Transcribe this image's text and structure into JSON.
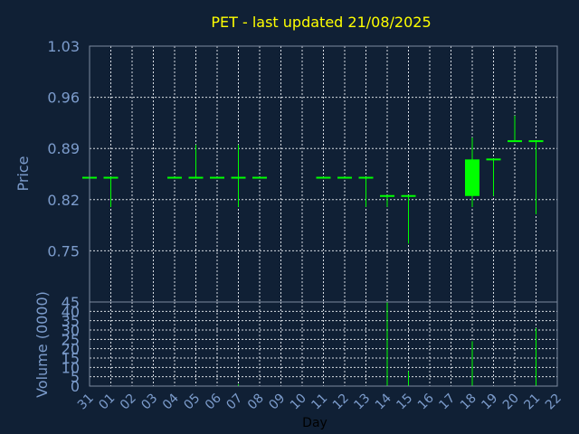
{
  "colors": {
    "background": "#102035",
    "title": "#ffff00",
    "candle": "#00ff00",
    "axis_text": "#7c9ccc",
    "xlabel": "#000000",
    "grid": "#d8dde4"
  },
  "chart_data": {
    "type": "candlestick",
    "title": "PET - last updated 21/08/2025",
    "xlabel": "Day",
    "price_panel": {
      "ylabel": "Price",
      "ylim": [
        0.68,
        1.03
      ],
      "yticks": [
        "1.03",
        "0.96",
        "0.89",
        "0.82",
        "0.75"
      ],
      "ytick_values": [
        1.03,
        0.96,
        0.89,
        0.82,
        0.75
      ],
      "grid": true
    },
    "volume_panel": {
      "ylabel": "Volume (0000)",
      "ylim": [
        0,
        45
      ],
      "yticks": [
        "45",
        "40",
        "35",
        "30",
        "25",
        "20",
        "15",
        "10",
        "5",
        "0"
      ],
      "ytick_values": [
        45,
        40,
        35,
        30,
        25,
        20,
        15,
        10,
        5,
        0
      ],
      "grid": true
    },
    "days": [
      "31",
      "01",
      "02",
      "03",
      "04",
      "05",
      "06",
      "07",
      "08",
      "09",
      "10",
      "11",
      "12",
      "13",
      "14",
      "15",
      "16",
      "17",
      "18",
      "19",
      "20",
      "21",
      "22"
    ],
    "candles": [
      {
        "day": "31",
        "open": 0.85,
        "high": 0.85,
        "low": 0.85,
        "close": 0.85
      },
      {
        "day": "01",
        "open": 0.85,
        "high": 0.85,
        "low": 0.81,
        "close": 0.85
      },
      {
        "day": "04",
        "open": 0.85,
        "high": 0.85,
        "low": 0.85,
        "close": 0.85
      },
      {
        "day": "05",
        "open": 0.85,
        "high": 0.895,
        "low": 0.85,
        "close": 0.85
      },
      {
        "day": "06",
        "open": 0.85,
        "high": 0.85,
        "low": 0.85,
        "close": 0.85
      },
      {
        "day": "07",
        "open": 0.85,
        "high": 0.895,
        "low": 0.81,
        "close": 0.85
      },
      {
        "day": "08",
        "open": 0.85,
        "high": 0.85,
        "low": 0.85,
        "close": 0.85
      },
      {
        "day": "11",
        "open": 0.85,
        "high": 0.85,
        "low": 0.85,
        "close": 0.85
      },
      {
        "day": "12",
        "open": 0.85,
        "high": 0.85,
        "low": 0.85,
        "close": 0.85
      },
      {
        "day": "13",
        "open": 0.85,
        "high": 0.85,
        "low": 0.81,
        "close": 0.85
      },
      {
        "day": "14",
        "open": 0.825,
        "high": 0.825,
        "low": 0.81,
        "close": 0.825
      },
      {
        "day": "15",
        "open": 0.825,
        "high": 0.825,
        "low": 0.76,
        "close": 0.825
      },
      {
        "day": "18",
        "open": 0.825,
        "high": 0.905,
        "low": 0.81,
        "close": 0.875
      },
      {
        "day": "19",
        "open": 0.875,
        "high": 0.875,
        "low": 0.825,
        "close": 0.875
      },
      {
        "day": "20",
        "open": 0.9,
        "high": 0.935,
        "low": 0.9,
        "close": 0.9
      },
      {
        "day": "21",
        "open": 0.9,
        "high": 0.9,
        "low": 0.8,
        "close": 0.9
      }
    ],
    "volume": [
      {
        "day": "07",
        "value": 1
      },
      {
        "day": "14",
        "value": 45
      },
      {
        "day": "15",
        "value": 8
      },
      {
        "day": "18",
        "value": 24
      },
      {
        "day": "21",
        "value": 31
      }
    ]
  }
}
